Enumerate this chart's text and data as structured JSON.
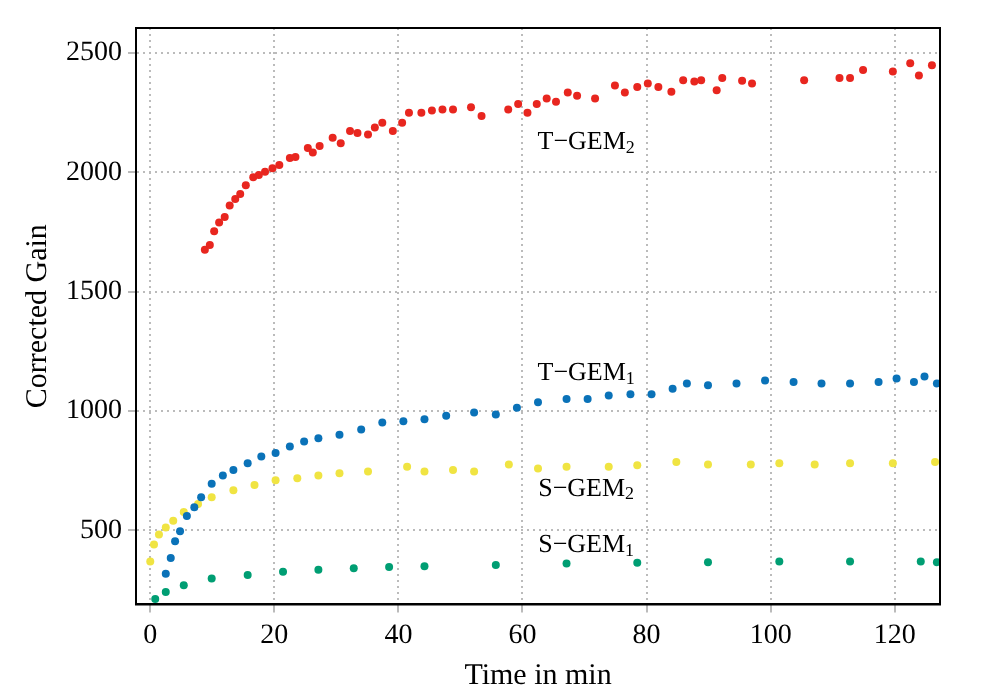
{
  "chart_data": {
    "type": "scatter",
    "xlabel": "Time in min",
    "ylabel": "Corrected Gain",
    "xlim": [
      -2.3,
      127.3
    ],
    "ylim": [
      190,
      2605
    ],
    "xticks": [
      0,
      20,
      40,
      60,
      80,
      100,
      120
    ],
    "yticks": [
      500,
      1000,
      1500,
      2000,
      2500
    ],
    "grid": true,
    "legend": false,
    "marker": "circle",
    "series": [
      {
        "name": "T−GEM$_{2}$",
        "color": "#e8261f",
        "x": [
          8.8,
          9.6,
          10.3,
          11.1,
          12,
          12.8,
          13.7,
          14.5,
          15.4,
          16.6,
          17.5,
          18.5,
          19.7,
          20.8,
          22.5,
          23.4,
          25.4,
          26.2,
          27.3,
          29.4,
          30.7,
          32.2,
          33.4,
          35.1,
          36.2,
          37.4,
          39.1,
          40.6,
          41.7,
          43.7,
          45.4,
          47.1,
          48.8,
          51.7,
          53.4,
          57.7,
          59.3,
          60.8,
          62.3,
          63.9,
          65.4,
          67.3,
          68.8,
          71.7,
          74.9,
          76.5,
          78.5,
          80.2,
          81.9,
          84,
          85.9,
          87.7,
          88.8,
          91.3,
          92.2,
          95.4,
          97,
          105.4,
          111.1,
          112.8,
          114.9,
          119.7,
          122.5,
          123.9,
          126
        ],
        "values": [
          1676,
          1696,
          1753,
          1790,
          1813,
          1861,
          1889,
          1909,
          1946,
          1980,
          1989,
          2003,
          2017,
          2031,
          2060,
          2065,
          2102,
          2083,
          2111,
          2145,
          2122,
          2173,
          2165,
          2159,
          2188,
          2208,
          2173,
          2208,
          2250,
          2250,
          2259,
          2264,
          2264,
          2273,
          2236,
          2264,
          2287,
          2250,
          2287,
          2310,
          2296,
          2335,
          2321,
          2310,
          2364,
          2335,
          2358,
          2372,
          2358,
          2338,
          2386,
          2381,
          2386,
          2344,
          2395,
          2384,
          2372,
          2386,
          2395,
          2395,
          2429,
          2423,
          2457,
          2406,
          2449
        ]
      },
      {
        "name": "T−GEM$_{1}$",
        "color": "#0a72b8",
        "x": [
          2.5,
          3.3,
          4,
          4.8,
          5.9,
          7.1,
          8.2,
          9.9,
          11.7,
          13.4,
          15.7,
          17.9,
          20.2,
          22.5,
          24.8,
          27.1,
          30.5,
          34,
          37.4,
          40.8,
          44.2,
          47.7,
          52.2,
          55.7,
          59.1,
          62.5,
          67.1,
          70.5,
          73.9,
          77.4,
          80.8,
          84.2,
          86.5,
          89.9,
          94.5,
          99.1,
          103.7,
          108.2,
          112.8,
          117.4,
          120.3,
          123.1,
          124.8,
          126.8
        ],
        "values": [
          318,
          384,
          455,
          497,
          560,
          597,
          639,
          696,
          730,
          753,
          781,
          810,
          824,
          852,
          872,
          886,
          901,
          923,
          952,
          957,
          966,
          980,
          994,
          986,
          1014,
          1037,
          1051,
          1051,
          1065,
          1071,
          1071,
          1094,
          1116,
          1108,
          1116,
          1128,
          1122,
          1116,
          1116,
          1122,
          1136,
          1122,
          1145,
          1116
        ]
      },
      {
        "name": "S−GEM$_{2}$",
        "color": "#f0e442",
        "x": [
          0,
          0.6,
          1.4,
          2.5,
          3.7,
          5.4,
          7.7,
          9.9,
          13.4,
          16.8,
          20.2,
          23.7,
          27.1,
          30.5,
          35.1,
          41.4,
          44.2,
          48.8,
          52.2,
          57.8,
          62.5,
          67.1,
          73.9,
          78.5,
          84.8,
          89.9,
          96.8,
          101.4,
          107.1,
          112.8,
          119.7,
          126.5
        ],
        "values": [
          370,
          441,
          483,
          512,
          540,
          577,
          611,
          639,
          668,
          690,
          710,
          719,
          730,
          739,
          747,
          767,
          747,
          753,
          747,
          776,
          759,
          767,
          767,
          773,
          787,
          776,
          776,
          781,
          776,
          781,
          781,
          787
        ]
      },
      {
        "name": "S−GEM$_{1}$",
        "color": "#009e73",
        "x": [
          0.8,
          2.5,
          5.4,
          9.9,
          15.7,
          21.4,
          27.1,
          32.8,
          38.5,
          44.2,
          55.7,
          67.1,
          78.5,
          89.9,
          101.4,
          112.8,
          124.2,
          126.8
        ],
        "values": [
          213,
          242,
          270,
          299,
          313,
          327,
          335,
          341,
          347,
          350,
          355,
          361,
          364,
          367,
          370,
          370,
          370,
          367
        ]
      }
    ]
  }
}
